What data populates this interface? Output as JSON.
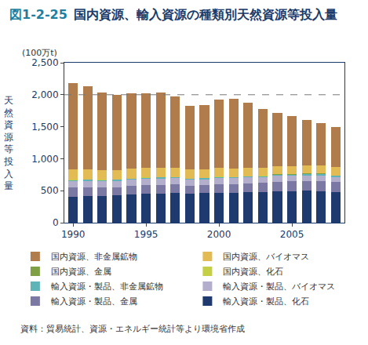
{
  "chart_data": {
    "type": "bar",
    "stacked": true,
    "title": "図1-2-25 国内資源、輸入資源の種類別天然資源等投入量",
    "y_label": "天然資源等投入量",
    "y_unit": "(100万t)",
    "source": "資料：貿易統計、資源・エネルギー統計等より環境省作成",
    "x": [
      1990,
      1991,
      1992,
      1993,
      1994,
      1995,
      1996,
      1997,
      1998,
      1999,
      2000,
      2001,
      2002,
      2003,
      2004,
      2005,
      2006,
      2007,
      2008
    ],
    "xlim": [
      1989.4,
      2008.6
    ],
    "xticks": [
      1990,
      1995,
      2000,
      2005
    ],
    "ylim": [
      0,
      2500
    ],
    "yticks": [
      0,
      500,
      {
        "value": 1000,
        "label": "1,000"
      },
      {
        "value": 1500,
        "label": "1,500"
      },
      {
        "value": 2000,
        "label": "2,000"
      },
      {
        "value": 2500,
        "label": "2,500"
      }
    ],
    "grid": false,
    "reference_line": 2000,
    "legend": "bottom",
    "series": [
      {
        "name": "国内資源、非金属鉱物",
        "color": "#b07c4c",
        "values": [
          1349,
          1296,
          1214,
          1174,
          1179,
          1166,
          1174,
          1112,
          999,
          1001,
          1064,
          1089,
          1012,
          916,
          836,
          788,
          716,
          669,
          634
        ]
      },
      {
        "name": "国内資源、バイオマス",
        "color": "#e2bb55",
        "values": [
          160,
          158,
          155,
          150,
          150,
          148,
          145,
          142,
          140,
          138,
          135,
          135,
          132,
          130,
          130,
          128,
          128,
          125,
          125
        ]
      },
      {
        "name": "国内資源、金属",
        "color": "#7f9f45",
        "values": [
          1,
          1,
          1,
          1,
          1,
          1,
          1,
          1,
          1,
          1,
          1,
          1,
          1,
          1,
          1,
          1,
          1,
          1,
          1
        ]
      },
      {
        "name": "国内資源、化石",
        "color": "#c5cf45",
        "values": [
          5,
          5,
          5,
          5,
          5,
          5,
          5,
          5,
          5,
          5,
          5,
          5,
          5,
          5,
          5,
          5,
          5,
          5,
          5
        ]
      },
      {
        "name": "輸入資源・製品、非金属鉱物",
        "color": "#5fb4b8",
        "values": [
          15,
          15,
          15,
          15,
          15,
          15,
          15,
          15,
          15,
          15,
          15,
          15,
          15,
          18,
          18,
          18,
          20,
          20,
          20
        ]
      },
      {
        "name": "輸入資源・製品、バイオマス",
        "color": "#b3aecb",
        "values": [
          100,
          100,
          100,
          100,
          100,
          100,
          100,
          100,
          95,
          95,
          95,
          95,
          95,
          90,
          90,
          85,
          85,
          85,
          80
        ]
      },
      {
        "name": "輸入資源・製品、金属",
        "color": "#7b78a3",
        "values": [
          140,
          135,
          130,
          125,
          130,
          135,
          135,
          135,
          125,
          125,
          135,
          130,
          135,
          140,
          150,
          150,
          155,
          160,
          155
        ]
      },
      {
        "name": "輸入資源・製品、化石",
        "color": "#1f3a6e",
        "values": [
          410,
          420,
          420,
          430,
          440,
          450,
          455,
          460,
          450,
          460,
          470,
          470,
          475,
          480,
          490,
          495,
          500,
          495,
          480
        ]
      }
    ]
  }
}
